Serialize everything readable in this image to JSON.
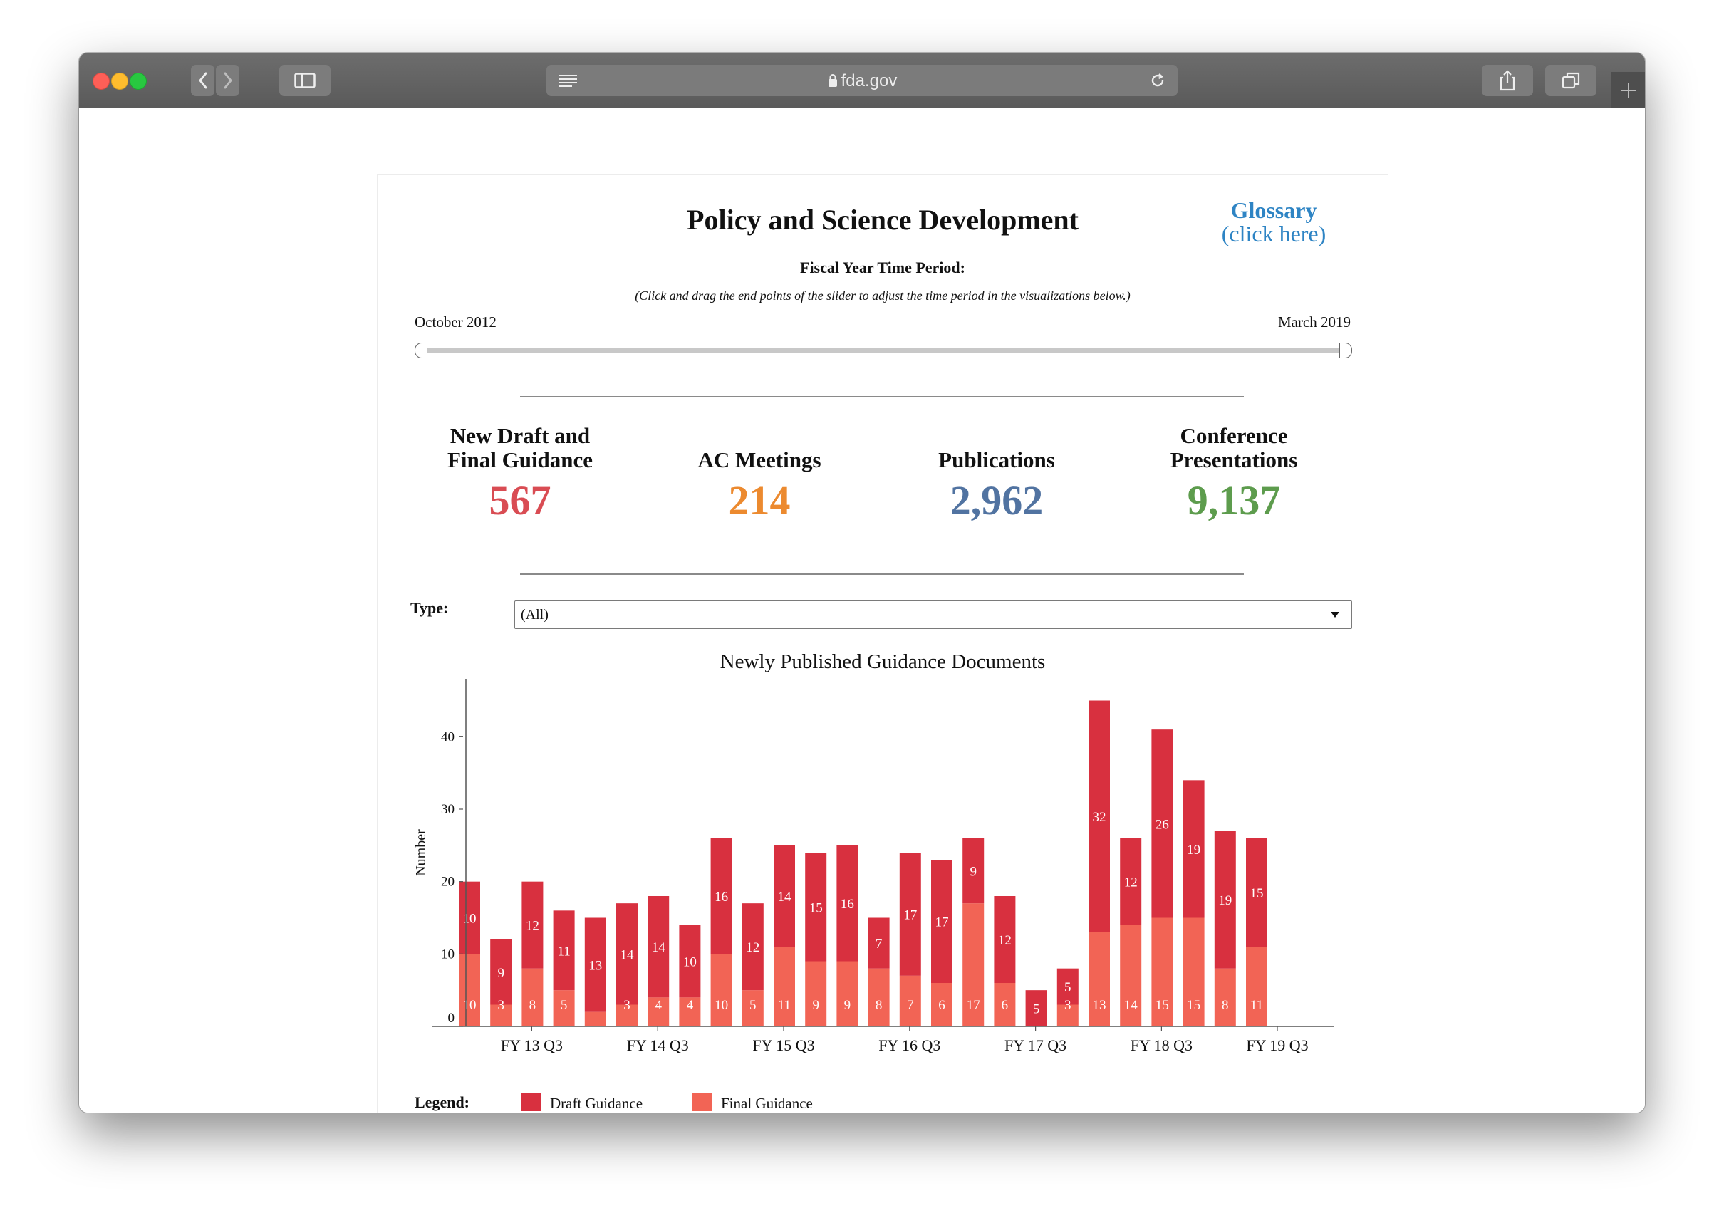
{
  "browser": {
    "url": "fda.gov"
  },
  "page": {
    "title": "Policy and Science Development",
    "glossary_line1": "Glossary",
    "glossary_line2": "(click here)",
    "period_label": "Fiscal Year Time Period:",
    "period_hint": "(Click and drag the end points of the slider to adjust the time period in the visualizations below.)",
    "slider_start": "October 2012",
    "slider_end": "March 2019"
  },
  "kpis": [
    {
      "label_line1": "New Draft and",
      "label_line2": "Final Guidance",
      "value": "567",
      "color": "#d94c53"
    },
    {
      "label_line1": "AC Meetings",
      "label_line2": "",
      "value": "214",
      "color": "#ec8a2f"
    },
    {
      "label_line1": "Publications",
      "label_line2": "",
      "value": "2,962",
      "color": "#5173a1"
    },
    {
      "label_line1": "Conference",
      "label_line2": "Presentations",
      "value": "9,137",
      "color": "#5d9c4d"
    }
  ],
  "filter": {
    "label": "Type:",
    "value": "(All)"
  },
  "legend": {
    "label": "Legend:",
    "items": [
      {
        "name": "Draft Guidance",
        "color": "#d8303f"
      },
      {
        "name": "Final Guidance",
        "color": "#f26455"
      }
    ]
  },
  "chart_data": {
    "type": "bar",
    "stacked": true,
    "title": "Newly Published Guidance Documents",
    "xlabel": "",
    "ylabel": "Number",
    "ylim": [
      0,
      48
    ],
    "y_ticks": [
      0,
      10,
      20,
      30,
      40
    ],
    "x_tick_labels": [
      "FY 13 Q3",
      "FY 14 Q3",
      "FY 15 Q3",
      "FY 16 Q3",
      "FY 17 Q3",
      "FY 18 Q3",
      "FY 19 Q3"
    ],
    "series": [
      {
        "name": "Final Guidance",
        "color": "#f26455",
        "values": [
          10,
          3,
          8,
          5,
          2,
          3,
          4,
          4,
          10,
          5,
          11,
          9,
          9,
          8,
          7,
          6,
          17,
          6,
          0,
          3,
          13,
          14,
          15,
          15,
          8,
          11
        ],
        "labels": [
          "10",
          "3",
          "8",
          "5",
          "",
          "3",
          "4",
          "4",
          "10",
          "5",
          "11",
          "9",
          "9",
          "8",
          "7",
          "6",
          "17",
          "6",
          "",
          "3",
          "13",
          "14",
          "15",
          "15",
          "8",
          "11"
        ]
      },
      {
        "name": "Draft Guidance",
        "color": "#d8303f",
        "values": [
          10,
          9,
          12,
          11,
          13,
          14,
          14,
          10,
          16,
          12,
          14,
          15,
          16,
          7,
          17,
          17,
          9,
          12,
          5,
          5,
          32,
          12,
          26,
          19,
          19,
          15
        ],
        "labels": [
          "10",
          "9",
          "12",
          "11",
          "13",
          "14",
          "14",
          "10",
          "16",
          "12",
          "14",
          "15",
          "16",
          "7",
          "17",
          "17",
          "9",
          "12",
          "5",
          "5",
          "32",
          "12",
          "26",
          "19",
          "19",
          "15"
        ]
      }
    ]
  }
}
